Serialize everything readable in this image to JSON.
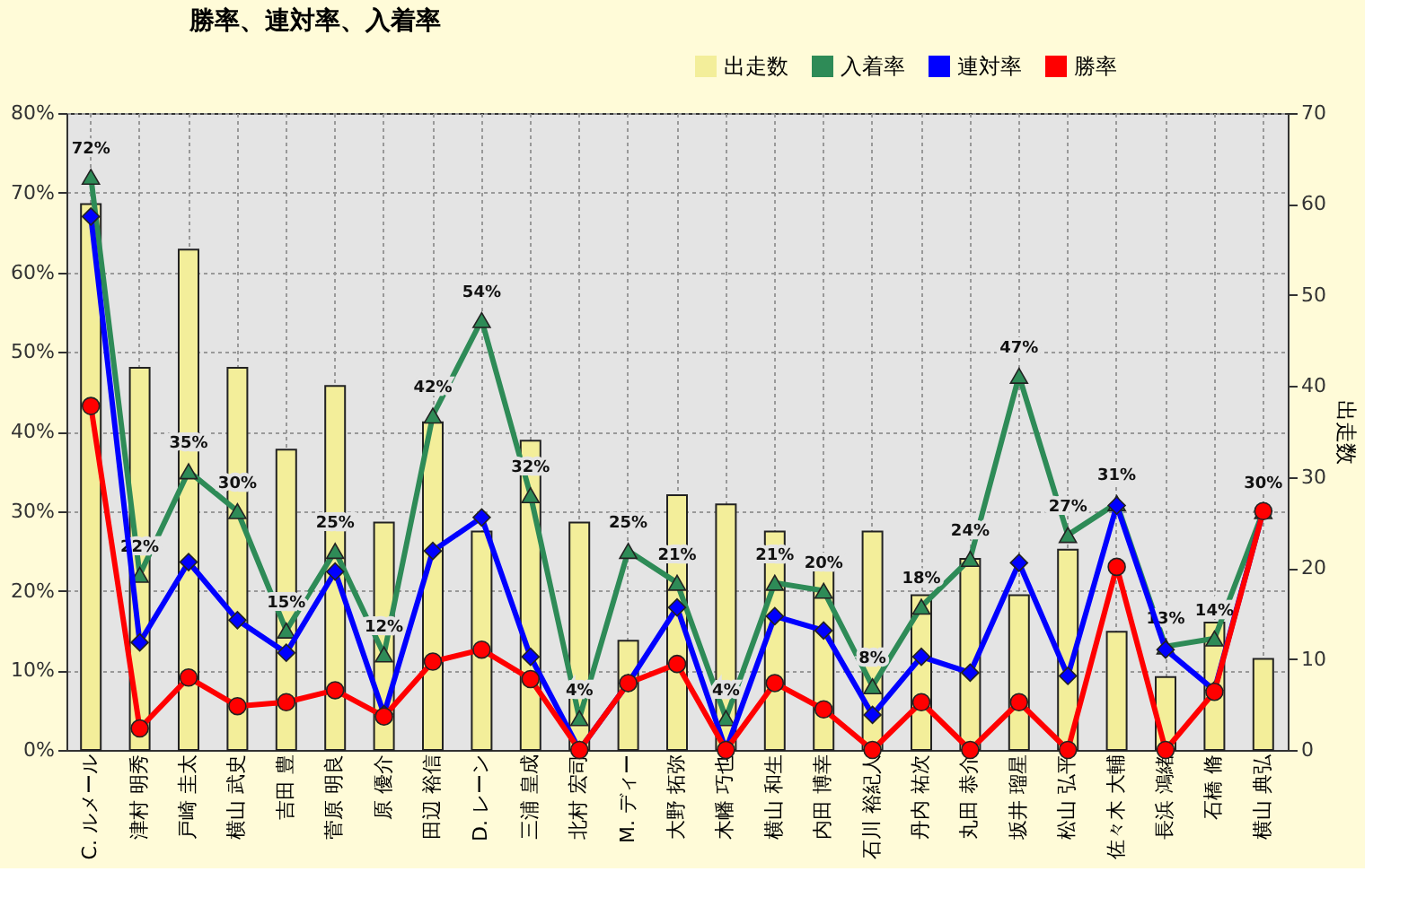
{
  "chart_data": {
    "type": "bar",
    "title": "勝率、連対率、入着率",
    "categories": [
      "C. ルメール",
      "津村 明秀",
      "戸崎 圭太",
      "横山 武史",
      "吉田 豊",
      "菅原 明良",
      "原 優介",
      "田辺 裕信",
      "D. レーン",
      "三浦 皇成",
      "北村 宏司",
      "M. ディー",
      "大野 拓弥",
      "木幡 巧也",
      "横山 和生",
      "内田 博幸",
      "石川 裕紀人",
      "丹内 祐次",
      "丸田 恭介",
      "坂井 瑠星",
      "松山 弘平",
      "佐々木 大輔",
      "長浜 鴻緒",
      "石橋 脩",
      "横山 典弘"
    ],
    "series": [
      {
        "name": "出走数",
        "axis": "y2",
        "color": "#f3ee9a",
        "values": [
          60,
          42,
          55,
          42,
          33,
          40,
          25,
          36,
          24,
          34,
          25,
          12,
          28,
          27,
          24,
          20,
          24,
          17,
          21,
          17,
          22,
          13,
          8,
          14,
          10
        ]
      },
      {
        "name": "入着率",
        "type": "line",
        "marker": "triangle",
        "color": "#2e8b57",
        "values": [
          72,
          22,
          35,
          30,
          15,
          25,
          12,
          42,
          54,
          32,
          4,
          25,
          21,
          4,
          21,
          20,
          8,
          18,
          24,
          47,
          27,
          31,
          13,
          14,
          30
        ],
        "value_labels": [
          "72%",
          "22%",
          "35%",
          "30%",
          "15%",
          "25%",
          "12%",
          "42%",
          "54%",
          "32%",
          "4%",
          "25%",
          "21%",
          "4%",
          "21%",
          "20%",
          "8%",
          "18%",
          "24%",
          "47%",
          "27%",
          "31%",
          "13%",
          "14%",
          "30%"
        ]
      },
      {
        "name": "連対率",
        "type": "line",
        "marker": "diamond",
        "color": "#0000ff",
        "values": [
          67,
          13.5,
          23.6,
          16.3,
          12.2,
          22.4,
          4.5,
          25,
          29.2,
          11.7,
          0,
          8.4,
          17.9,
          0,
          16.8,
          15,
          4.4,
          11.7,
          9.7,
          23.5,
          9.3,
          30.7,
          12.6,
          7.5,
          30
        ]
      },
      {
        "name": "勝率",
        "type": "line",
        "marker": "circle",
        "color": "#ff0000",
        "values": [
          43.2,
          2.7,
          9.1,
          5.5,
          6,
          7.5,
          4.2,
          11.1,
          12.6,
          8.9,
          0,
          8.4,
          10.8,
          0,
          8.4,
          5.1,
          0,
          6,
          0,
          6,
          0,
          23,
          0,
          7.3,
          30
        ]
      }
    ],
    "ylim": [
      0,
      80
    ],
    "yticks": [
      {
        "value": 0,
        "label": "0%"
      },
      {
        "value": 10,
        "label": "10%"
      },
      {
        "value": 20,
        "label": "20%"
      },
      {
        "value": 30,
        "label": "30%"
      },
      {
        "value": 40,
        "label": "40%"
      },
      {
        "value": 50,
        "label": "50%"
      },
      {
        "value": 60,
        "label": "60%"
      },
      {
        "value": 70,
        "label": "70%"
      },
      {
        "value": 80,
        "label": "80%"
      }
    ],
    "y2label": "出走数",
    "y2lim": [
      0,
      70
    ],
    "y2ticks": [
      0,
      10,
      20,
      30,
      40,
      50,
      60,
      70
    ],
    "grid": true,
    "legend": "top"
  }
}
